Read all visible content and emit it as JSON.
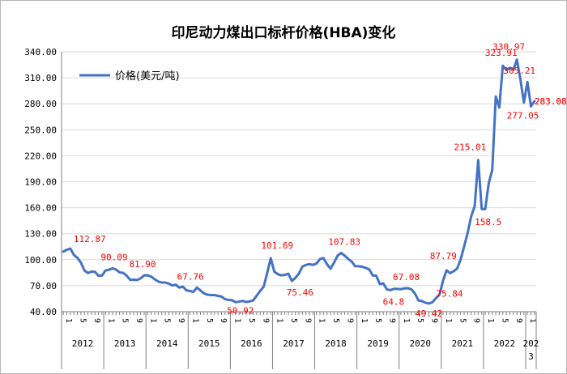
{
  "chart_data": {
    "type": "line",
    "title": "印尼动力煤出口标杆价格(HBA)变化",
    "xlabel": "",
    "ylabel": "",
    "ylim": [
      40,
      340
    ],
    "yticks": [
      "40.00",
      "70.00",
      "100.00",
      "130.00",
      "160.00",
      "190.00",
      "220.00",
      "250.00",
      "280.00",
      "310.00",
      "340.00"
    ],
    "grid": true,
    "legend": "top-left",
    "series_color": "#4472c4",
    "label_color": "#ff0000",
    "month_tick_labels": [
      "1",
      "5",
      "9"
    ],
    "years": [
      {
        "label": "2012"
      },
      {
        "label": "2013"
      },
      {
        "label": "2014"
      },
      {
        "label": "2015"
      },
      {
        "label": "2016"
      },
      {
        "label": "2017"
      },
      {
        "label": "2018"
      },
      {
        "label": "2019"
      },
      {
        "label": "2020"
      },
      {
        "label": "2021"
      },
      {
        "label": "2022"
      },
      {
        "label": "2023"
      }
    ],
    "year_2023_label_top": "202",
    "year_2023_label_bottom": "3",
    "series": [
      {
        "name": "价格(美元/吨)",
        "start": "2012-01",
        "values": [
          109.29,
          111.5,
          112.87,
          105.61,
          102.12,
          96.65,
          87.56,
          84.65,
          86.21,
          86.04,
          81.44,
          81.75,
          87.55,
          88.35,
          90.09,
          88.56,
          85.33,
          84.87,
          81.69,
          76.7,
          76.89,
          76.61,
          78.5,
          81.9,
          82.0,
          80.44,
          77.36,
          74.81,
          73.6,
          73.64,
          72.45,
          70.29,
          71.13,
          67.76,
          69.0,
          64.65,
          63.84,
          62.92,
          67.76,
          64.48,
          61.08,
          59.59,
          59.16,
          59.14,
          58.21,
          57.39,
          54.43,
          53.51,
          53.2,
          50.92,
          51.62,
          52.32,
          51.2,
          51.81,
          53.0,
          58.37,
          63.93,
          69.07,
          84.89,
          101.69,
          86.23,
          83.32,
          81.9,
          82.51,
          83.81,
          75.46,
          78.95,
          83.97,
          92.03,
          93.99,
          94.8,
          94.04,
          95.54,
          100.69,
          101.86,
          94.75,
          89.53,
          96.61,
          104.65,
          107.83,
          104.81,
          100.89,
          97.9,
          92.51,
          92.41,
          91.8,
          90.57,
          88.85,
          81.86,
          81.48,
          71.92,
          72.67,
          65.79,
          64.8,
          66.27,
          66.3,
          65.93,
          66.89,
          67.08,
          65.77,
          61.11,
          52.98,
          52.16,
          50.34,
          49.42,
          51.0,
          55.71,
          59.65,
          75.84,
          87.79,
          84.47,
          86.68,
          89.74,
          100.33,
          115.35,
          130.99,
          150.03,
          161.63,
          215.01,
          158.5,
          158.5,
          188.38,
          203.69,
          288.4,
          275.64,
          323.91,
          319.0,
          321.59,
          319.22,
          330.97,
          308.2,
          281.48,
          305.21,
          277.05,
          283.08
        ]
      }
    ],
    "data_labels": [
      {
        "index": 2,
        "text": "112.87"
      },
      {
        "index": 14,
        "text": "90.09"
      },
      {
        "index": 23,
        "text": "81.90"
      },
      {
        "index": 38,
        "text": "67.76"
      },
      {
        "index": 49,
        "text": "50.92"
      },
      {
        "index": 59,
        "text": "101.69"
      },
      {
        "index": 65,
        "text": "75.46"
      },
      {
        "index": 79,
        "text": "107.83"
      },
      {
        "index": 93,
        "text": "64.8"
      },
      {
        "index": 98,
        "text": "67.08"
      },
      {
        "index": 104,
        "text": "49.42"
      },
      {
        "index": 109,
        "text": "87.79"
      },
      {
        "index": 108,
        "text": "75.84"
      },
      {
        "index": 118,
        "text": "215.01"
      },
      {
        "index": 119,
        "text": "158.5"
      },
      {
        "index": 125,
        "text": "323.91"
      },
      {
        "index": 129,
        "text": "330.97"
      },
      {
        "index": 132,
        "text": "305.21"
      },
      {
        "index": 133,
        "text": "277.05"
      },
      {
        "index": 134,
        "text": "283.08"
      },
      {
        "index": 134,
        "text": "283.08"
      }
    ]
  }
}
